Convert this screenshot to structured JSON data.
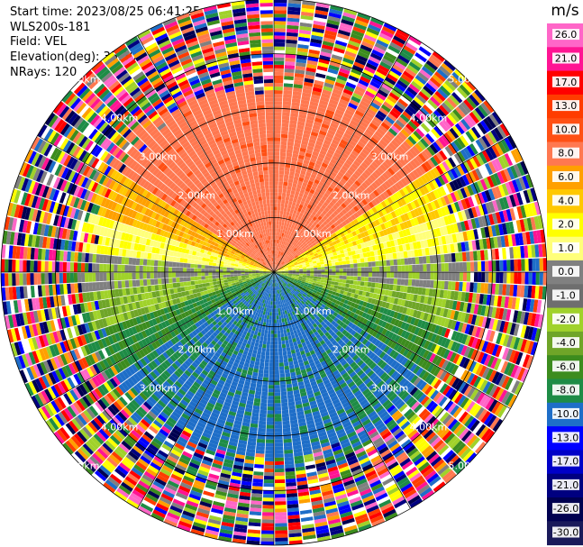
{
  "header": {
    "start_time": "Start time: 2023/08/25 06:41:25",
    "instrument": "WLS200s-181",
    "field": "Field: VEL",
    "elevation": "Elevation(deg): 35.30",
    "nrays": "NRays: 120"
  },
  "colorbar": {
    "unit": "m/s",
    "labels": [
      "26.0",
      "21.0",
      "17.0",
      "13.0",
      "10.0",
      "8.0",
      "6.0",
      "4.0",
      "2.0",
      "1.0",
      "0.0",
      "-1.0",
      "-2.0",
      "-4.0",
      "-6.0",
      "-8.0",
      "-10.0",
      "-13.0",
      "-17.0",
      "-21.0",
      "-26.0",
      "-30.0"
    ],
    "colors": [
      "#ff66c8",
      "#ff1493",
      "#ff0000",
      "#ff3c00",
      "#ff5014",
      "#ff7850",
      "#ffa000",
      "#ffc800",
      "#ffff00",
      "#ffff7a",
      "#808080",
      "#6e6e6e",
      "#a0d22a",
      "#6fa528",
      "#3c8c1e",
      "#1e8c46",
      "#1e6ec8",
      "#0000ff",
      "#0000c8",
      "#000080",
      "#000050",
      "#1a1a5a"
    ]
  },
  "chart_data": {
    "type": "ppi",
    "title": "",
    "field": "VEL",
    "units": "m/s",
    "nrays": 120,
    "elevation_deg": 35.3,
    "range_rings_km": [
      1.0,
      2.0,
      3.0,
      4.0,
      5.0
    ],
    "ring_labels": [
      "1.00km",
      "2.00km",
      "3.00km",
      "4.00km",
      "5.00km"
    ],
    "max_range_km": 5.0,
    "clean_range_km": 3.5,
    "velocity_pattern": {
      "north_sector": "positive 8 to 13 m/s (orange)",
      "northeast_near": "2 to 4 m/s (yellow)",
      "east_west_axis": "near 0 m/s (grey)",
      "south_sector": "negative -6 to -13 m/s (green/blue)",
      "beyond_clean_range": "noise (all colors)"
    },
    "color_scale": {
      "min": -30.0,
      "max": 26.0,
      "levels": [
        -30,
        -26,
        -21,
        -17,
        -13,
        -10,
        -8,
        -6,
        -4,
        -2,
        -1,
        0,
        1,
        2,
        4,
        6,
        8,
        10,
        13,
        17,
        21,
        26
      ]
    }
  }
}
